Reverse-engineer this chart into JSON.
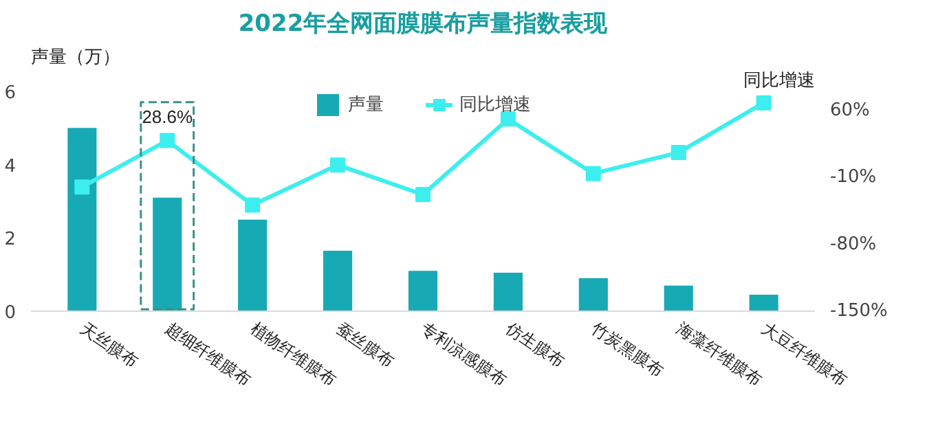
{
  "chart_data": {
    "type": "bar",
    "title": "2022年全网面膜膜布声量指数表现",
    "ylabel": "声量（万）",
    "y2label": "同比增速",
    "categories": [
      "天丝膜布",
      "超细纤维膜布",
      "植物纤维膜布",
      "蚕丝膜布",
      "专利凉感膜布",
      "仿生膜布",
      "竹炭黑膜布",
      "海藻纤维膜布",
      "大豆纤维膜布"
    ],
    "series": [
      {
        "name": "声量",
        "color": "#17aab4",
        "values": [
          5.0,
          3.1,
          2.5,
          1.65,
          1.1,
          1.05,
          0.9,
          0.7,
          0.45
        ]
      },
      {
        "name": "同比增速",
        "type": "line",
        "axis": "y2",
        "color": "#3deeee",
        "marker": "square",
        "values": [
          -20,
          28.6,
          -39,
          3,
          -28,
          51,
          -6,
          16,
          68
        ],
        "value_labels": [
          null,
          "28.6%",
          null,
          null,
          null,
          null,
          null,
          null,
          null
        ]
      }
    ],
    "ylim": [
      0,
      6
    ],
    "yticks": [
      0,
      2,
      4,
      6
    ],
    "y2lim": [
      -150,
      80
    ],
    "y2ticks": [
      {
        "value": -150,
        "label": "-150%"
      },
      {
        "value": -80,
        "label": "-80%"
      },
      {
        "value": -10,
        "label": "-10%"
      },
      {
        "value": 60,
        "label": "60%"
      }
    ],
    "legend": "top",
    "grid": false
  }
}
